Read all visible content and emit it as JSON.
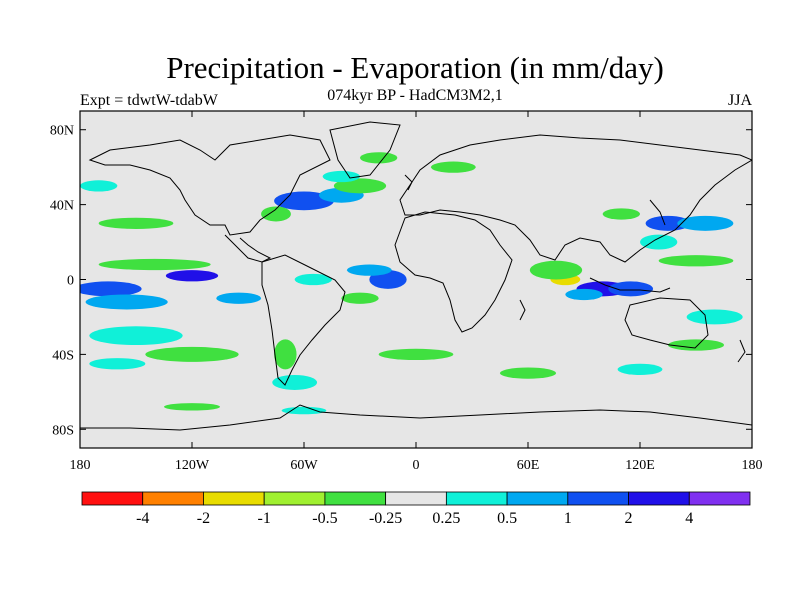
{
  "chart_data": {
    "type": "heatmap",
    "title": "Precipitation - Evaporation (in mm/day)",
    "subtitle": "074kyr BP - HadCM3M2,1",
    "left_label": "Expt = tdwtW-tdabW",
    "right_label": "JJA",
    "x_ticks": [
      {
        "value": -180,
        "label": "180"
      },
      {
        "value": -120,
        "label": "120W"
      },
      {
        "value": -60,
        "label": "60W"
      },
      {
        "value": 0,
        "label": "0"
      },
      {
        "value": 60,
        "label": "60E"
      },
      {
        "value": 120,
        "label": "120E"
      },
      {
        "value": 180,
        "label": "180"
      }
    ],
    "y_ticks": [
      {
        "value": 80,
        "label": "80N"
      },
      {
        "value": 40,
        "label": "40N"
      },
      {
        "value": 0,
        "label": "0"
      },
      {
        "value": -40,
        "label": "40S"
      },
      {
        "value": -80,
        "label": "80S"
      }
    ],
    "xlim": [
      -180,
      180
    ],
    "ylim": [
      -90,
      90
    ],
    "background_color": "#e6e6e6",
    "colorbar": {
      "colors": [
        "#ff1010",
        "#ff8000",
        "#e8dc00",
        "#a0f030",
        "#40e040",
        "#e6e6e6",
        "#10f0d8",
        "#00a8f0",
        "#1050f0",
        "#2010e8",
        "#8030f0"
      ],
      "labels": [
        "-4",
        "-2",
        "-1",
        "-0.5",
        "-0.25",
        "0.25",
        "0.5",
        "1",
        "2",
        "4"
      ]
    },
    "blobs": [
      {
        "lon": -165,
        "lat": -5,
        "rx": 18,
        "ry": 4,
        "level": 8
      },
      {
        "lon": -120,
        "lat": 2,
        "rx": 14,
        "ry": 3,
        "level": 9
      },
      {
        "lon": -155,
        "lat": -12,
        "rx": 22,
        "ry": 4,
        "level": 7
      },
      {
        "lon": -95,
        "lat": -10,
        "rx": 12,
        "ry": 3,
        "level": 7
      },
      {
        "lon": -140,
        "lat": 8,
        "rx": 30,
        "ry": 3,
        "level": 4
      },
      {
        "lon": -150,
        "lat": -30,
        "rx": 25,
        "ry": 5,
        "level": 6
      },
      {
        "lon": -120,
        "lat": -40,
        "rx": 25,
        "ry": 4,
        "level": 4
      },
      {
        "lon": -160,
        "lat": -45,
        "rx": 15,
        "ry": 3,
        "level": 6
      },
      {
        "lon": -60,
        "lat": 42,
        "rx": 16,
        "ry": 5,
        "level": 8
      },
      {
        "lon": -40,
        "lat": 45,
        "rx": 12,
        "ry": 4,
        "level": 7
      },
      {
        "lon": -30,
        "lat": 50,
        "rx": 14,
        "ry": 4,
        "level": 4
      },
      {
        "lon": -40,
        "lat": 55,
        "rx": 10,
        "ry": 3,
        "level": 6
      },
      {
        "lon": -75,
        "lat": 35,
        "rx": 8,
        "ry": 4,
        "level": 4
      },
      {
        "lon": -55,
        "lat": 0,
        "rx": 10,
        "ry": 3,
        "level": 6
      },
      {
        "lon": -15,
        "lat": 0,
        "rx": 10,
        "ry": 5,
        "level": 8
      },
      {
        "lon": -25,
        "lat": 5,
        "rx": 12,
        "ry": 3,
        "level": 7
      },
      {
        "lon": -30,
        "lat": -10,
        "rx": 10,
        "ry": 3,
        "level": 4
      },
      {
        "lon": -65,
        "lat": -55,
        "rx": 12,
        "ry": 4,
        "level": 6
      },
      {
        "lon": -70,
        "lat": -40,
        "rx": 6,
        "ry": 8,
        "level": 4
      },
      {
        "lon": 0,
        "lat": -40,
        "rx": 20,
        "ry": 3,
        "level": 4
      },
      {
        "lon": 60,
        "lat": -50,
        "rx": 15,
        "ry": 3,
        "level": 4
      },
      {
        "lon": 80,
        "lat": 0,
        "rx": 8,
        "ry": 3,
        "level": 2
      },
      {
        "lon": 75,
        "lat": 5,
        "rx": 14,
        "ry": 5,
        "level": 4
      },
      {
        "lon": 100,
        "lat": -5,
        "rx": 14,
        "ry": 4,
        "level": 9
      },
      {
        "lon": 115,
        "lat": -5,
        "rx": 12,
        "ry": 4,
        "level": 8
      },
      {
        "lon": 90,
        "lat": -8,
        "rx": 10,
        "ry": 3,
        "level": 7
      },
      {
        "lon": 135,
        "lat": 30,
        "rx": 12,
        "ry": 4,
        "level": 8
      },
      {
        "lon": 130,
        "lat": 20,
        "rx": 10,
        "ry": 4,
        "level": 6
      },
      {
        "lon": 155,
        "lat": 30,
        "rx": 15,
        "ry": 4,
        "level": 7
      },
      {
        "lon": 110,
        "lat": 35,
        "rx": 10,
        "ry": 3,
        "level": 4
      },
      {
        "lon": 150,
        "lat": 10,
        "rx": 20,
        "ry": 3,
        "level": 4
      },
      {
        "lon": 160,
        "lat": -20,
        "rx": 15,
        "ry": 4,
        "level": 6
      },
      {
        "lon": 150,
        "lat": -35,
        "rx": 15,
        "ry": 3,
        "level": 4
      },
      {
        "lon": 120,
        "lat": -48,
        "rx": 12,
        "ry": 3,
        "level": 6
      },
      {
        "lon": -150,
        "lat": 30,
        "rx": 20,
        "ry": 3,
        "level": 4
      },
      {
        "lon": -170,
        "lat": 50,
        "rx": 10,
        "ry": 3,
        "level": 6
      },
      {
        "lon": -20,
        "lat": 65,
        "rx": 10,
        "ry": 3,
        "level": 4
      },
      {
        "lon": 20,
        "lat": 60,
        "rx": 12,
        "ry": 3,
        "level": 4
      },
      {
        "lon": -60,
        "lat": -70,
        "rx": 12,
        "ry": 2,
        "level": 6
      },
      {
        "lon": -120,
        "lat": -68,
        "rx": 15,
        "ry": 2,
        "level": 4
      }
    ]
  }
}
